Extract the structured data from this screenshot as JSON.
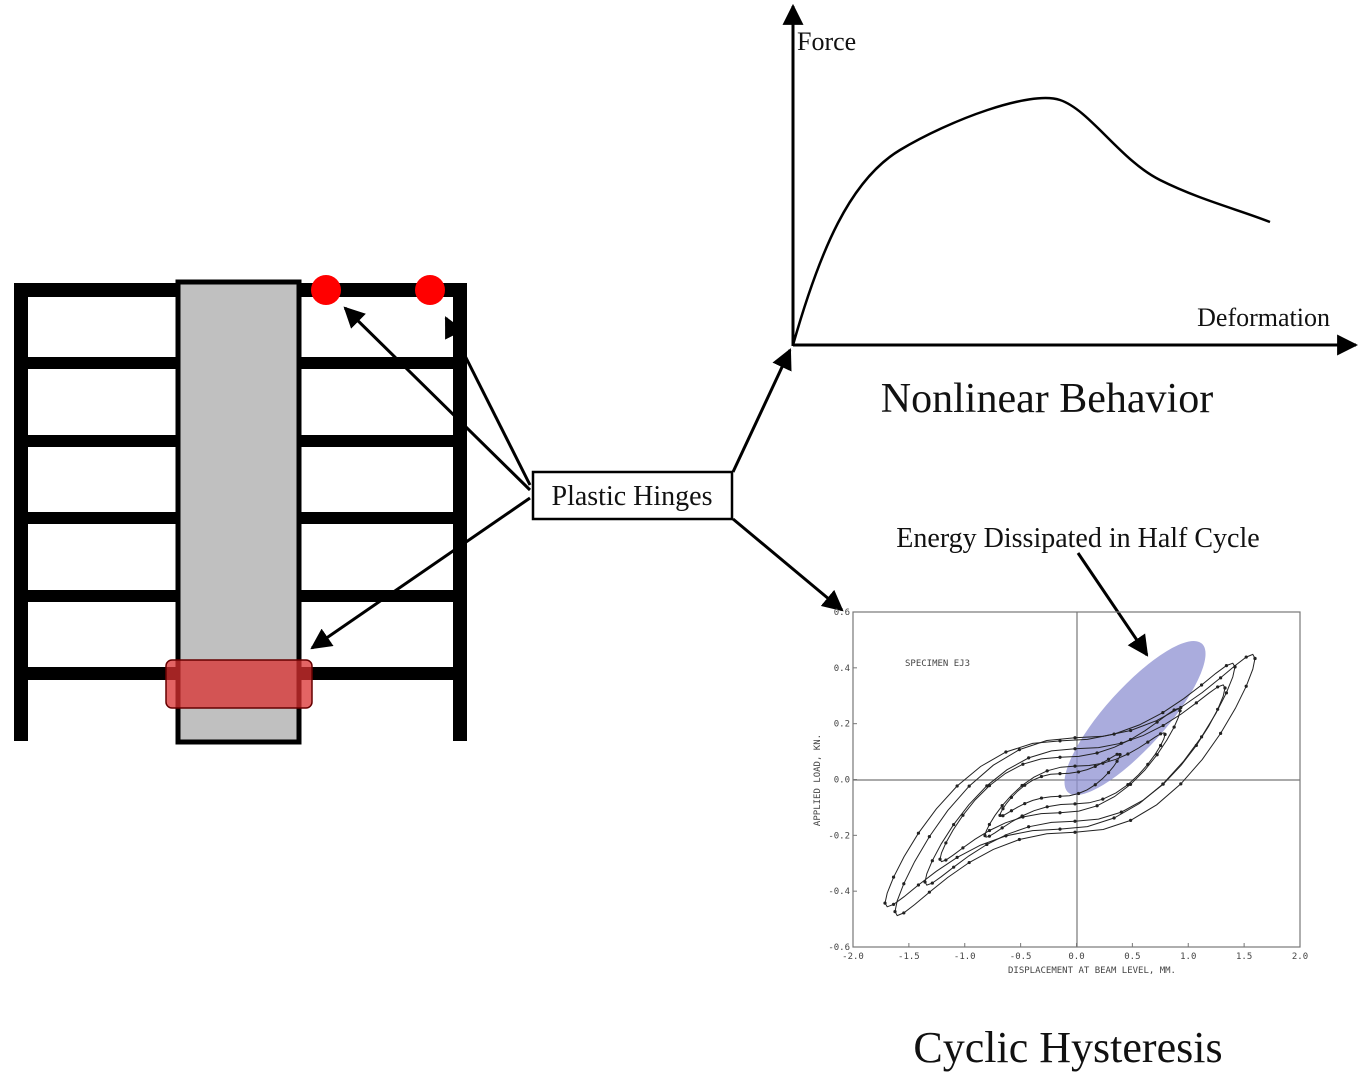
{
  "labels": {
    "plastic_hinges": "Plastic Hinges",
    "force": "Force",
    "deformation": "Deformation",
    "nonlinear_title": "Nonlinear Behavior",
    "energy": "Energy Dissipated in Half Cycle",
    "cyclic_title": "Cyclic Hysteresis"
  },
  "hysteresis_plot": {
    "specimen": "SPECIMEN EJ3",
    "y_label": "APPLIED LOAD, KN.",
    "x_label": "DISPLACEMENT AT BEAM LEVEL, MM.",
    "x_ticks": [
      "-2.0",
      "-1.5",
      "-1.0",
      "-0.5",
      "0.0",
      "0.5",
      "1.0",
      "1.5",
      "2.0"
    ],
    "y_ticks": [
      "-0.6",
      "-0.4",
      "-0.2",
      "0.0",
      "0.2",
      "0.4",
      "0.6"
    ]
  }
}
